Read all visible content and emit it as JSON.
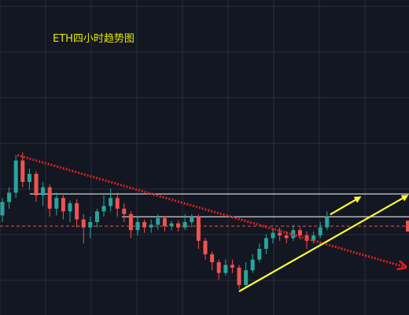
{
  "chart_data": {
    "type": "candlestick",
    "title": "ETH四小时趋势图",
    "xlabel": "",
    "ylabel": "",
    "ylim": [
      0,
      100
    ],
    "grid": true,
    "colors": {
      "background": "#131722",
      "grid": "#2a2e3c",
      "up": "#26a69a",
      "down": "#ef5350",
      "price_line": "#ef5350",
      "resistance": "#ffffff",
      "downtrend": "#e02020",
      "uptrend": "#ffff33",
      "title": "#e6e600"
    },
    "levels": {
      "upper_resistance": 61,
      "lower_resistance": 44,
      "current_price": 37
    },
    "candles": [
      [
        45,
        55,
        40,
        58
      ],
      [
        55,
        62,
        50,
        66
      ],
      [
        62,
        86,
        58,
        90
      ],
      [
        86,
        70,
        66,
        92
      ],
      [
        70,
        76,
        64,
        80
      ],
      [
        76,
        60,
        55,
        78
      ],
      [
        60,
        66,
        52,
        70
      ],
      [
        66,
        50,
        44,
        68
      ],
      [
        50,
        58,
        45,
        62
      ],
      [
        58,
        48,
        42,
        60
      ],
      [
        48,
        54,
        40,
        56
      ],
      [
        54,
        42,
        36,
        57
      ],
      [
        42,
        36,
        24,
        46
      ],
      [
        36,
        40,
        28,
        44
      ],
      [
        40,
        48,
        36,
        50
      ],
      [
        48,
        52,
        44,
        60
      ],
      [
        52,
        58,
        48,
        65
      ],
      [
        58,
        50,
        44,
        62
      ],
      [
        50,
        46,
        40,
        54
      ],
      [
        46,
        34,
        28,
        48
      ],
      [
        34,
        40,
        30,
        44
      ],
      [
        40,
        36,
        32,
        42
      ],
      [
        36,
        38,
        32,
        42
      ],
      [
        38,
        43,
        34,
        46
      ],
      [
        43,
        37,
        33,
        44
      ],
      [
        37,
        39,
        34,
        41
      ],
      [
        39,
        36,
        33,
        41
      ],
      [
        36,
        40,
        34,
        46
      ],
      [
        40,
        44,
        36,
        46
      ],
      [
        44,
        26,
        20,
        46
      ],
      [
        26,
        16,
        12,
        28
      ],
      [
        16,
        10,
        4,
        18
      ],
      [
        10,
        2,
        -3,
        12
      ],
      [
        2,
        8,
        0,
        12
      ],
      [
        8,
        6,
        2,
        12
      ],
      [
        6,
        -7,
        -10,
        8
      ],
      [
        -7,
        4,
        -9,
        10
      ],
      [
        4,
        12,
        2,
        16
      ],
      [
        12,
        20,
        10,
        24
      ],
      [
        20,
        28,
        16,
        31
      ],
      [
        28,
        32,
        24,
        35
      ],
      [
        32,
        30,
        26,
        36
      ],
      [
        30,
        28,
        24,
        33
      ],
      [
        28,
        34,
        26,
        38
      ],
      [
        34,
        30,
        27,
        36
      ],
      [
        30,
        26,
        20,
        33
      ],
      [
        26,
        30,
        24,
        33
      ],
      [
        30,
        36,
        28,
        40
      ],
      [
        36,
        44,
        34,
        48
      ]
    ]
  }
}
